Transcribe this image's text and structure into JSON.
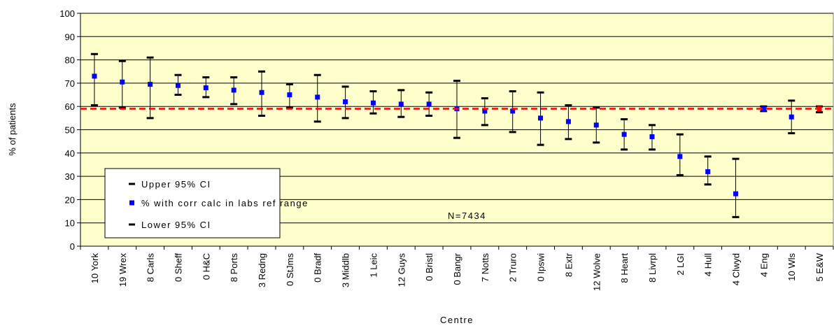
{
  "chart_data": {
    "type": "errorbar",
    "x_label": "Centre",
    "y_label": "% of patients",
    "annotation": "N=7434",
    "categories": [
      "10 York",
      "19 Wrex",
      "8 Carls",
      "0 Sheff",
      "0 H&C",
      "8 Ports",
      "3 Redng",
      "0 StJms",
      "0 Bradf",
      "3 Middlb",
      "1 Leic",
      "12 Guys",
      "0 Bristl",
      "0 Bangr",
      "7 Notts",
      "2 Truro",
      "0 Ipswi",
      "8 Extr",
      "12 Wolve",
      "8 Heart",
      "8 Livrpl",
      "2 LGI",
      "4 Hull",
      "4 Clwyd",
      "4 Eng",
      "10 Wls",
      "5 E&W"
    ],
    "series": [
      {
        "name": "Upper 95% CI",
        "color": "#000000",
        "values": [
          82.5,
          79.5,
          81,
          73.5,
          72.5,
          72.5,
          75,
          69.5,
          73.5,
          68.5,
          66.5,
          67,
          66,
          71,
          63.5,
          66.5,
          66,
          60.5,
          59.5,
          54.5,
          52,
          48,
          38.5,
          37.5,
          60,
          62.5,
          60
        ]
      },
      {
        "name": "% with corr calc in labs ref range",
        "color": "#0000ff",
        "values": [
          73,
          70.5,
          69.5,
          69,
          68,
          67,
          66,
          65,
          64,
          62,
          61.5,
          61,
          61,
          59,
          58,
          58,
          55,
          53.5,
          52,
          48,
          47,
          38.5,
          32,
          22.5,
          59,
          55.5,
          59
        ],
        "point_colors": [
          "#0000ff",
          "#0000ff",
          "#0000ff",
          "#0000ff",
          "#0000ff",
          "#0000ff",
          "#0000ff",
          "#0000ff",
          "#0000ff",
          "#0000ff",
          "#0000ff",
          "#0000ff",
          "#0000ff",
          "#0000ff",
          "#0000ff",
          "#0000ff",
          "#0000ff",
          "#0000ff",
          "#0000ff",
          "#0000ff",
          "#0000ff",
          "#0000ff",
          "#0000ff",
          "#0000ff",
          "#0000ff",
          "#0000ff",
          "#ff0000"
        ]
      },
      {
        "name": "Lower 95% CI",
        "color": "#000000",
        "values": [
          60.5,
          59.5,
          55,
          65,
          64,
          61,
          56,
          59.5,
          53.5,
          55,
          57,
          55.5,
          56,
          46.5,
          52,
          49,
          43.5,
          46,
          44.5,
          41.5,
          41.5,
          30.5,
          26.5,
          12.5,
          58,
          48.5,
          57.5
        ]
      }
    ],
    "reference_line": {
      "value": 59,
      "color": "#ff0000"
    },
    "ylim": [
      0,
      100
    ],
    "yticks": [
      0,
      10,
      20,
      30,
      40,
      50,
      60,
      70,
      80,
      90,
      100
    ],
    "grid": true,
    "background": "#ffffcc"
  }
}
